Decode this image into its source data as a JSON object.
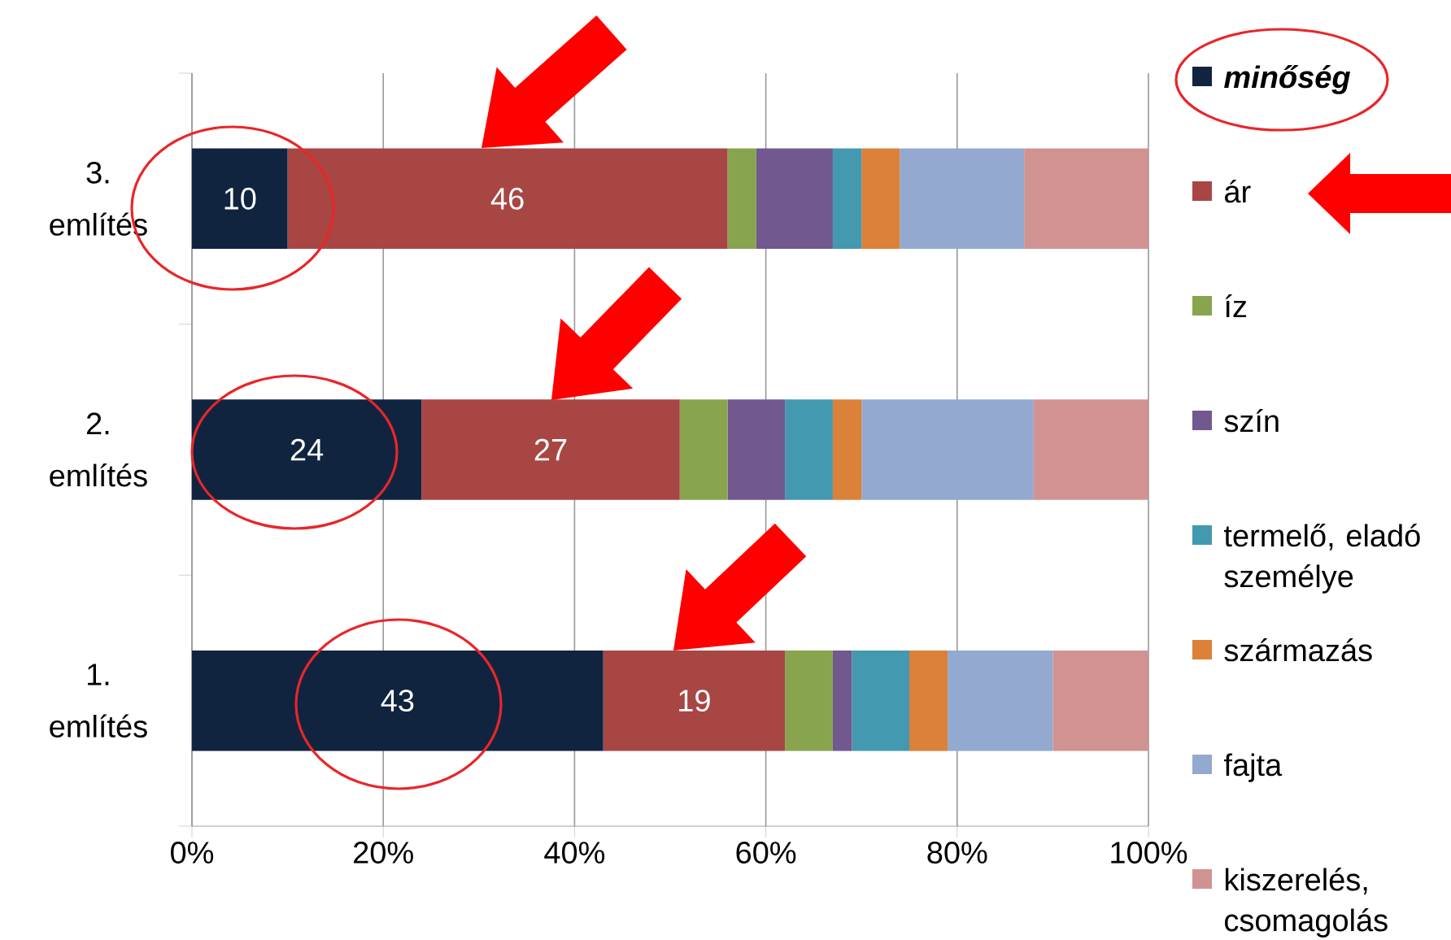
{
  "chart_data": {
    "type": "bar",
    "orientation": "horizontal",
    "stacked": true,
    "categories": [
      "3. említés",
      "2. említés",
      "1. említés"
    ],
    "series": [
      {
        "name": "minőség",
        "color": "#10243f",
        "values": [
          10,
          24,
          43
        ],
        "value_labels": [
          "10",
          "24",
          "43"
        ]
      },
      {
        "name": "ár",
        "color": "#a84644",
        "values": [
          46,
          27,
          19
        ],
        "value_labels": [
          "46",
          "27",
          "19"
        ]
      },
      {
        "name": "íz",
        "color": "#88a44f",
        "values": [
          3,
          5,
          5
        ]
      },
      {
        "name": "szín",
        "color": "#71588f",
        "values": [
          8,
          6,
          2
        ]
      },
      {
        "name": "termelő, eladó személye",
        "color": "#4299b0",
        "values": [
          3,
          5,
          6
        ]
      },
      {
        "name": "származás",
        "color": "#db8139",
        "values": [
          4,
          3,
          4
        ]
      },
      {
        "name": "fajta",
        "color": "#93a9cf",
        "values": [
          13,
          18,
          11
        ]
      },
      {
        "name": "kiszerelés, csomagolás",
        "color": "#d19392",
        "values": [
          13,
          12,
          10
        ]
      }
    ],
    "xlim": [
      0,
      100
    ],
    "xticks": [
      {
        "value": 0,
        "label": "0%"
      },
      {
        "value": 20,
        "label": "20%"
      },
      {
        "value": 40,
        "label": "40%"
      },
      {
        "value": 60,
        "label": "60%"
      },
      {
        "value": 80,
        "label": "80%"
      },
      {
        "value": 100,
        "label": "100%"
      }
    ],
    "grid": "x",
    "legend": "right"
  }
}
